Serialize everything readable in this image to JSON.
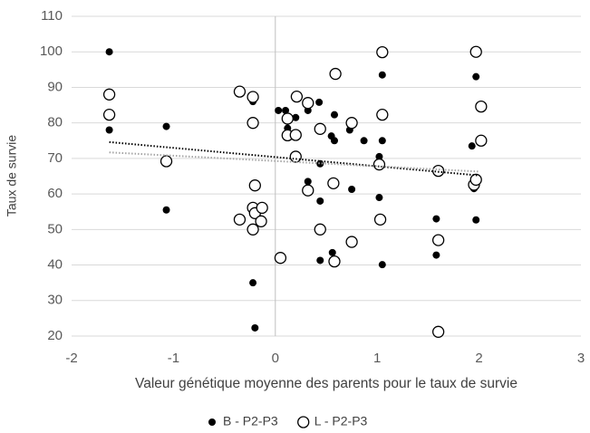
{
  "chart_data": {
    "type": "scatter",
    "x_label": "Valeur génétique moyenne des parents pour le taux de survie",
    "y_label": "Taux de survie",
    "xlim": [
      -2,
      3
    ],
    "xticks": [
      -2,
      -1,
      0,
      1,
      2,
      3
    ],
    "ylim": [
      20,
      110
    ],
    "yticks": [
      20,
      30,
      40,
      50,
      60,
      70,
      80,
      90,
      100,
      110
    ],
    "grid": true,
    "legend": "bottom",
    "series": [
      {
        "name": "B - P2-P3",
        "color": "#000000",
        "fill": "#000000",
        "x": [
          -1.63,
          -1.63,
          -1.07,
          -1.07,
          -0.22,
          -0.22,
          -0.2,
          0.03,
          0.1,
          0.12,
          0.2,
          0.22,
          0.32,
          0.32,
          0.43,
          0.44,
          0.44,
          0.44,
          0.55,
          0.58,
          0.58,
          0.56,
          0.73,
          0.75,
          0.87,
          1.02,
          1.02,
          1.05,
          1.05,
          1.05,
          1.58,
          1.58,
          1.93,
          1.95,
          1.97,
          1.97
        ],
        "values": [
          100,
          78,
          79,
          55.5,
          86,
          35,
          22.3,
          83.5,
          83.5,
          78.5,
          81.5,
          76.5,
          83.5,
          63.5,
          85.8,
          68.5,
          58,
          41.3,
          76.3,
          82.3,
          75,
          43.5,
          78,
          61.3,
          75,
          70.5,
          59,
          93.5,
          75,
          40.1,
          53,
          42.8,
          73.5,
          61.5,
          93,
          52.7
        ],
        "trendline": {
          "color": "#000000",
          "x": [
            -1.63,
            2
          ],
          "values": [
            74.6,
            65.2
          ]
        }
      },
      {
        "name": "L - P2-P3",
        "color": "#000000",
        "fill": "#ffffff",
        "x": [
          -1.63,
          -1.63,
          -1.07,
          -0.35,
          -0.22,
          -0.22,
          -0.2,
          -0.22,
          -0.2,
          -0.13,
          -0.14,
          -0.35,
          -0.22,
          0.05,
          0.12,
          0.12,
          0.2,
          0.2,
          0.21,
          0.32,
          0.32,
          0.44,
          0.44,
          0.57,
          0.58,
          0.59,
          0.75,
          0.75,
          1.02,
          1.03,
          1.05,
          1.05,
          1.6,
          1.6,
          1.6,
          1.95,
          1.97,
          1.97,
          2.02,
          2.02
        ],
        "values": [
          88,
          82.3,
          69.2,
          88.8,
          87.3,
          80,
          62.4,
          56.1,
          54.6,
          56.1,
          52.3,
          52.8,
          50,
          42,
          81.2,
          76.5,
          76.6,
          70.5,
          87.4,
          85.6,
          61,
          78.3,
          50,
          63,
          41,
          93.8,
          80,
          46.5,
          68.3,
          52.8,
          99.9,
          82.3,
          66.5,
          47,
          21.2,
          62.6,
          64,
          100,
          84.6,
          75
        ],
        "trendline": {
          "color": "#a6a6a6",
          "x": [
            -1.63,
            2
          ],
          "values": [
            71.7,
            66.3
          ]
        }
      }
    ]
  }
}
